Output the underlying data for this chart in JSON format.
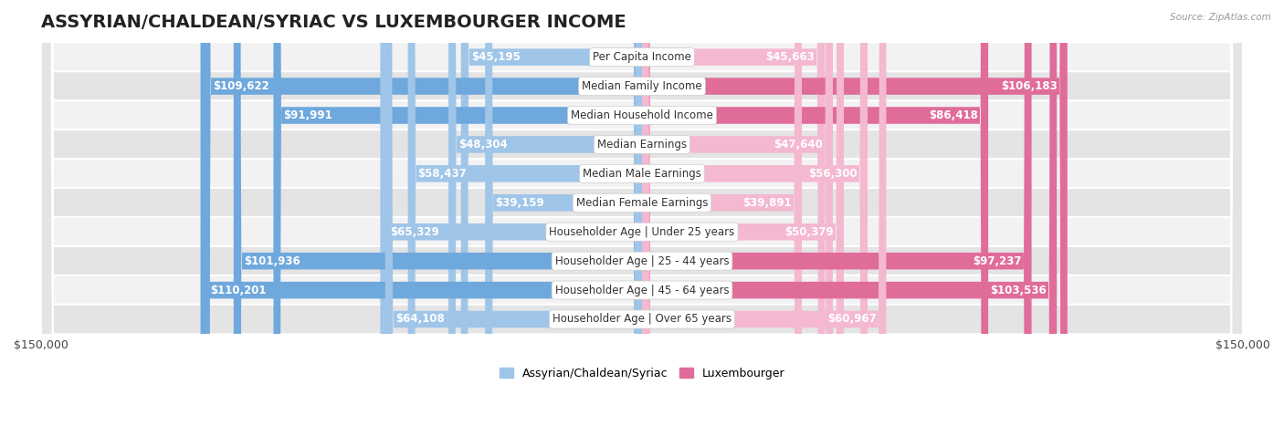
{
  "title": "ASSYRIAN/CHALDEAN/SYRIAC VS LUXEMBOURGER INCOME",
  "source": "Source: ZipAtlas.com",
  "categories": [
    "Per Capita Income",
    "Median Family Income",
    "Median Household Income",
    "Median Earnings",
    "Median Male Earnings",
    "Median Female Earnings",
    "Householder Age | Under 25 years",
    "Householder Age | 25 - 44 years",
    "Householder Age | 45 - 64 years",
    "Householder Age | Over 65 years"
  ],
  "assyrian_values": [
    45195,
    109622,
    91991,
    48304,
    58437,
    39159,
    65329,
    101936,
    110201,
    64108
  ],
  "luxembourger_values": [
    45663,
    106183,
    86418,
    47640,
    56300,
    39891,
    50379,
    97237,
    103536,
    60967
  ],
  "max_value": 150000,
  "assyrian_color_strong": "#6fa8dc",
  "assyrian_color_light": "#9fc5e8",
  "luxembourger_color_strong": "#e06c9a",
  "luxembourger_color_light": "#f4b8d0",
  "row_bg_light": "#f2f2f2",
  "row_bg_dark": "#e4e4e4",
  "bar_height": 0.58,
  "background_color": "#ffffff",
  "title_fontsize": 14,
  "legend_fontsize": 9,
  "category_fontsize": 8.5,
  "value_fontsize": 8.5,
  "axis_label_fontsize": 9,
  "xlabel_left": "$150,000",
  "xlabel_right": "$150,000",
  "strong_threshold": 70000,
  "inside_threshold": 25000
}
